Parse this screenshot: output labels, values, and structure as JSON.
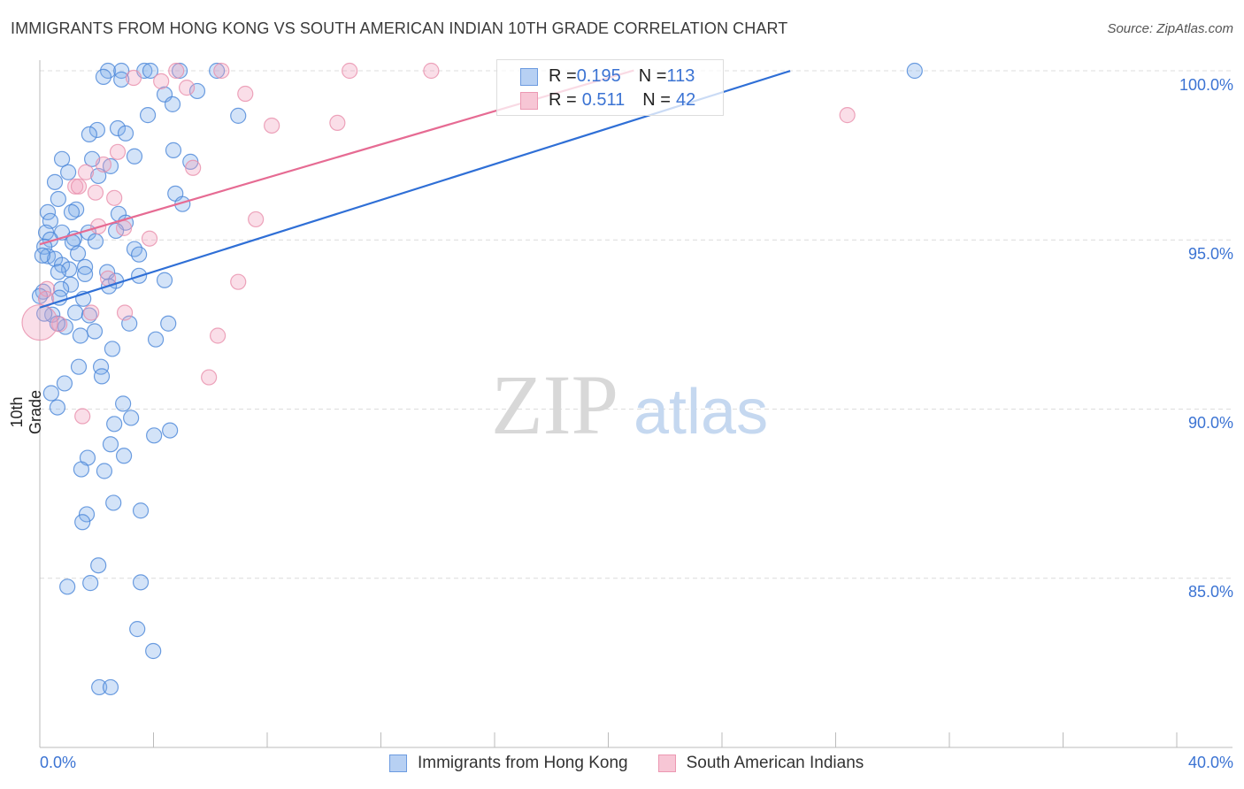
{
  "title": "IMMIGRANTS FROM HONG KONG VS SOUTH AMERICAN INDIAN 10TH GRADE CORRELATION CHART",
  "source": "Source: ZipAtlas.com",
  "watermark": {
    "zip": "ZIP",
    "atlas": "atlas"
  },
  "colors": {
    "blue": "#4a86d8",
    "blue_fill": "#a9c8f0",
    "pink": "#e88fab",
    "pink_fill": "#f6c3d3",
    "blue_line": "#2f6fd6",
    "pink_line": "#e66b93",
    "accent_text": "#3b73d3"
  },
  "legend": {
    "rows": [
      {
        "r_label": "R = ",
        "r": "0.195",
        "n_label": "N = ",
        "n": "113"
      },
      {
        "r_label": "R = ",
        "r": "0.511",
        "n_label": "N = ",
        "n": "42"
      }
    ]
  },
  "chart_data": {
    "type": "scatter",
    "title": "IMMIGRANTS FROM HONG KONG VS SOUTH AMERICAN INDIAN 10TH GRADE CORRELATION CHART",
    "xlabel": "",
    "ylabel": "10th Grade",
    "xlim": [
      0,
      40
    ],
    "ylim": [
      80,
      100
    ],
    "x_tick_labels": [
      "0.0%",
      "40.0%"
    ],
    "y_ticks": [
      85,
      90,
      95,
      100
    ],
    "y_tick_labels": [
      "85.0%",
      "90.0%",
      "95.0%",
      "100.0%"
    ],
    "grid": "horizontal dashed",
    "legend_position": "bottom",
    "series": [
      {
        "name": "Immigrants from Hong Kong",
        "color": "#4a86d8",
        "regression": {
          "intercept": 93.0,
          "slope": 0.265,
          "x_range": [
            0,
            26.4
          ]
        },
        "points": [
          [
            2.4,
            100
          ],
          [
            2.87,
            100
          ],
          [
            3.68,
            100
          ],
          [
            3.89,
            100
          ],
          [
            4.92,
            100
          ],
          [
            6.23,
            100
          ],
          [
            30.78,
            100
          ],
          [
            2.24,
            99.82
          ],
          [
            2.87,
            99.74
          ],
          [
            4.39,
            99.3
          ],
          [
            5.54,
            99.4
          ],
          [
            4.67,
            99.01
          ],
          [
            3.8,
            98.69
          ],
          [
            6.98,
            98.67
          ],
          [
            2.02,
            98.25
          ],
          [
            1.74,
            98.12
          ],
          [
            2.74,
            98.3
          ],
          [
            3.02,
            98.15
          ],
          [
            3.33,
            97.47
          ],
          [
            4.7,
            97.65
          ],
          [
            0.78,
            97.39
          ],
          [
            1.84,
            97.39
          ],
          [
            5.3,
            97.31
          ],
          [
            2.49,
            97.18
          ],
          [
            1.0,
            97.0
          ],
          [
            2.06,
            96.89
          ],
          [
            0.53,
            96.71
          ],
          [
            4.77,
            96.37
          ],
          [
            0.65,
            96.21
          ],
          [
            5.02,
            96.06
          ],
          [
            1.28,
            95.9
          ],
          [
            0.28,
            95.82
          ],
          [
            1.12,
            95.82
          ],
          [
            2.77,
            95.77
          ],
          [
            0.37,
            95.56
          ],
          [
            3.02,
            95.51
          ],
          [
            2.68,
            95.27
          ],
          [
            0.22,
            95.22
          ],
          [
            0.78,
            95.22
          ],
          [
            1.71,
            95.22
          ],
          [
            1.21,
            95.04
          ],
          [
            0.37,
            95.01
          ],
          [
            1.15,
            94.93
          ],
          [
            1.96,
            94.96
          ],
          [
            0.16,
            94.8
          ],
          [
            3.33,
            94.73
          ],
          [
            3.49,
            94.57
          ],
          [
            0.28,
            94.52
          ],
          [
            1.34,
            94.6
          ],
          [
            0.53,
            94.44
          ],
          [
            0.09,
            94.54
          ],
          [
            0.78,
            94.26
          ],
          [
            1.59,
            94.2
          ],
          [
            1.03,
            94.13
          ],
          [
            2.37,
            94.05
          ],
          [
            0.65,
            94.05
          ],
          [
            1.59,
            93.99
          ],
          [
            3.49,
            93.94
          ],
          [
            4.39,
            93.81
          ],
          [
            2.68,
            93.79
          ],
          [
            1.09,
            93.68
          ],
          [
            0.75,
            93.55
          ],
          [
            2.43,
            93.63
          ],
          [
            0.12,
            93.47
          ],
          [
            0.0,
            93.34
          ],
          [
            1.53,
            93.26
          ],
          [
            0.69,
            93.29
          ],
          [
            0.44,
            92.79
          ],
          [
            1.25,
            92.85
          ],
          [
            0.16,
            92.82
          ],
          [
            1.74,
            92.77
          ],
          [
            3.15,
            92.53
          ],
          [
            4.52,
            92.53
          ],
          [
            0.9,
            92.43
          ],
          [
            0.62,
            92.53
          ],
          [
            1.43,
            92.17
          ],
          [
            1.93,
            92.3
          ],
          [
            4.08,
            92.06
          ],
          [
            2.55,
            91.78
          ],
          [
            1.37,
            91.25
          ],
          [
            2.15,
            91.25
          ],
          [
            2.18,
            90.97
          ],
          [
            0.87,
            90.76
          ],
          [
            0.4,
            90.47
          ],
          [
            2.93,
            90.16
          ],
          [
            0.62,
            90.05
          ],
          [
            3.21,
            89.74
          ],
          [
            2.62,
            89.56
          ],
          [
            4.02,
            89.22
          ],
          [
            4.58,
            89.37
          ],
          [
            2.49,
            88.96
          ],
          [
            2.96,
            88.62
          ],
          [
            1.68,
            88.56
          ],
          [
            1.46,
            88.22
          ],
          [
            2.27,
            88.17
          ],
          [
            2.59,
            87.23
          ],
          [
            1.65,
            86.89
          ],
          [
            3.55,
            87.0
          ],
          [
            1.5,
            86.66
          ],
          [
            2.06,
            85.38
          ],
          [
            0.97,
            84.75
          ],
          [
            1.78,
            84.86
          ],
          [
            3.55,
            84.88
          ],
          [
            3.43,
            83.5
          ],
          [
            3.99,
            82.85
          ],
          [
            2.09,
            81.78
          ],
          [
            2.49,
            81.78
          ]
        ]
      },
      {
        "name": "South American Indians",
        "color": "#e88fab",
        "regression": {
          "intercept": 94.87,
          "slope": 0.246,
          "x_range": [
            0,
            20.9
          ]
        },
        "points": [
          [
            3.3,
            99.79
          ],
          [
            4.8,
            100
          ],
          [
            6.39,
            100
          ],
          [
            10.9,
            100
          ],
          [
            13.77,
            100
          ],
          [
            4.27,
            99.69
          ],
          [
            5.17,
            99.5
          ],
          [
            7.23,
            99.32
          ],
          [
            8.16,
            98.38
          ],
          [
            10.47,
            98.46
          ],
          [
            28.41,
            98.69
          ],
          [
            2.74,
            97.6
          ],
          [
            1.62,
            97.0
          ],
          [
            5.39,
            97.13
          ],
          [
            2.24,
            97.23
          ],
          [
            1.25,
            96.58
          ],
          [
            1.37,
            96.58
          ],
          [
            1.96,
            96.4
          ],
          [
            2.62,
            96.24
          ],
          [
            7.6,
            95.61
          ],
          [
            3.86,
            95.04
          ],
          [
            2.96,
            95.35
          ],
          [
            2.06,
            95.4
          ],
          [
            6.98,
            93.76
          ],
          [
            2.4,
            93.86
          ],
          [
            0.25,
            93.55
          ],
          [
            0.22,
            93.26
          ],
          [
            2.99,
            92.85
          ],
          [
            1.81,
            92.85
          ],
          [
            0.69,
            92.51
          ],
          [
            6.26,
            92.17
          ],
          [
            5.95,
            90.94
          ],
          [
            1.5,
            89.79
          ],
          [
            0.0,
            92.56
          ]
        ]
      }
    ]
  }
}
